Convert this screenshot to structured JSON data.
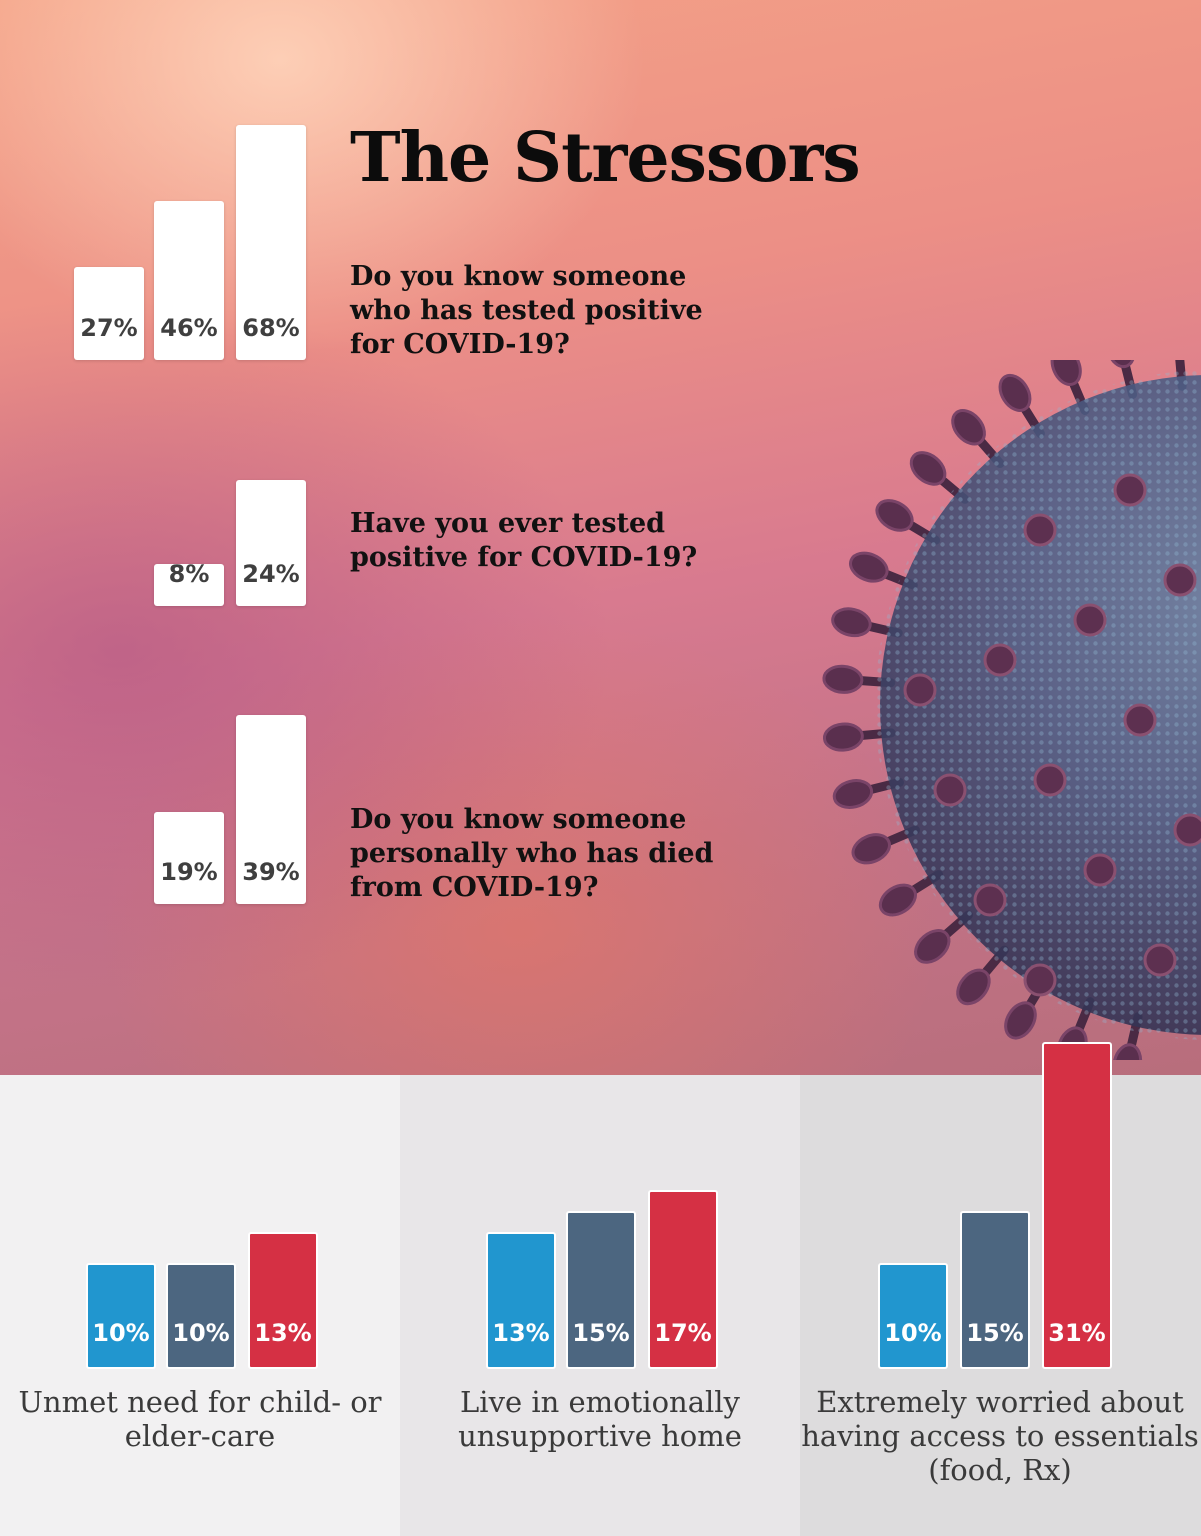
{
  "title": "The Stressors",
  "colors": {
    "blue": "#2196cf",
    "slate": "#4c6680",
    "red": "#d53044",
    "white_bar": "#ffffff"
  },
  "chart_data": [
    {
      "type": "bar",
      "question": "Do you know someone who has tested positive for COVID-19?",
      "labels": [
        "27%",
        "46%",
        "68%"
      ],
      "values": [
        27,
        46,
        68
      ]
    },
    {
      "type": "bar",
      "question": "Have you ever tested positive for COVID-19?",
      "labels": [
        "8%",
        "24%"
      ],
      "values": [
        8,
        24
      ]
    },
    {
      "type": "bar",
      "question": "Do you know someone personally who has died from COVID-19?",
      "labels": [
        "19%",
        "39%"
      ],
      "values": [
        19,
        39
      ]
    },
    {
      "type": "bar",
      "caption": "Unmet need for child- or elder-care",
      "labels": [
        "10%",
        "10%",
        "13%"
      ],
      "values": [
        10,
        10,
        13
      ],
      "bar_colors": [
        "blue",
        "slate",
        "red"
      ]
    },
    {
      "type": "bar",
      "caption": "Live in emotionally unsupportive home",
      "labels": [
        "13%",
        "15%",
        "17%"
      ],
      "values": [
        13,
        15,
        17
      ],
      "bar_colors": [
        "blue",
        "slate",
        "red"
      ]
    },
    {
      "type": "bar",
      "caption": "Extremely worried about having access to essentials (food, Rx)",
      "labels": [
        "10%",
        "15%",
        "31%"
      ],
      "values": [
        10,
        15,
        31
      ],
      "bar_colors": [
        "blue",
        "slate",
        "red"
      ]
    }
  ]
}
